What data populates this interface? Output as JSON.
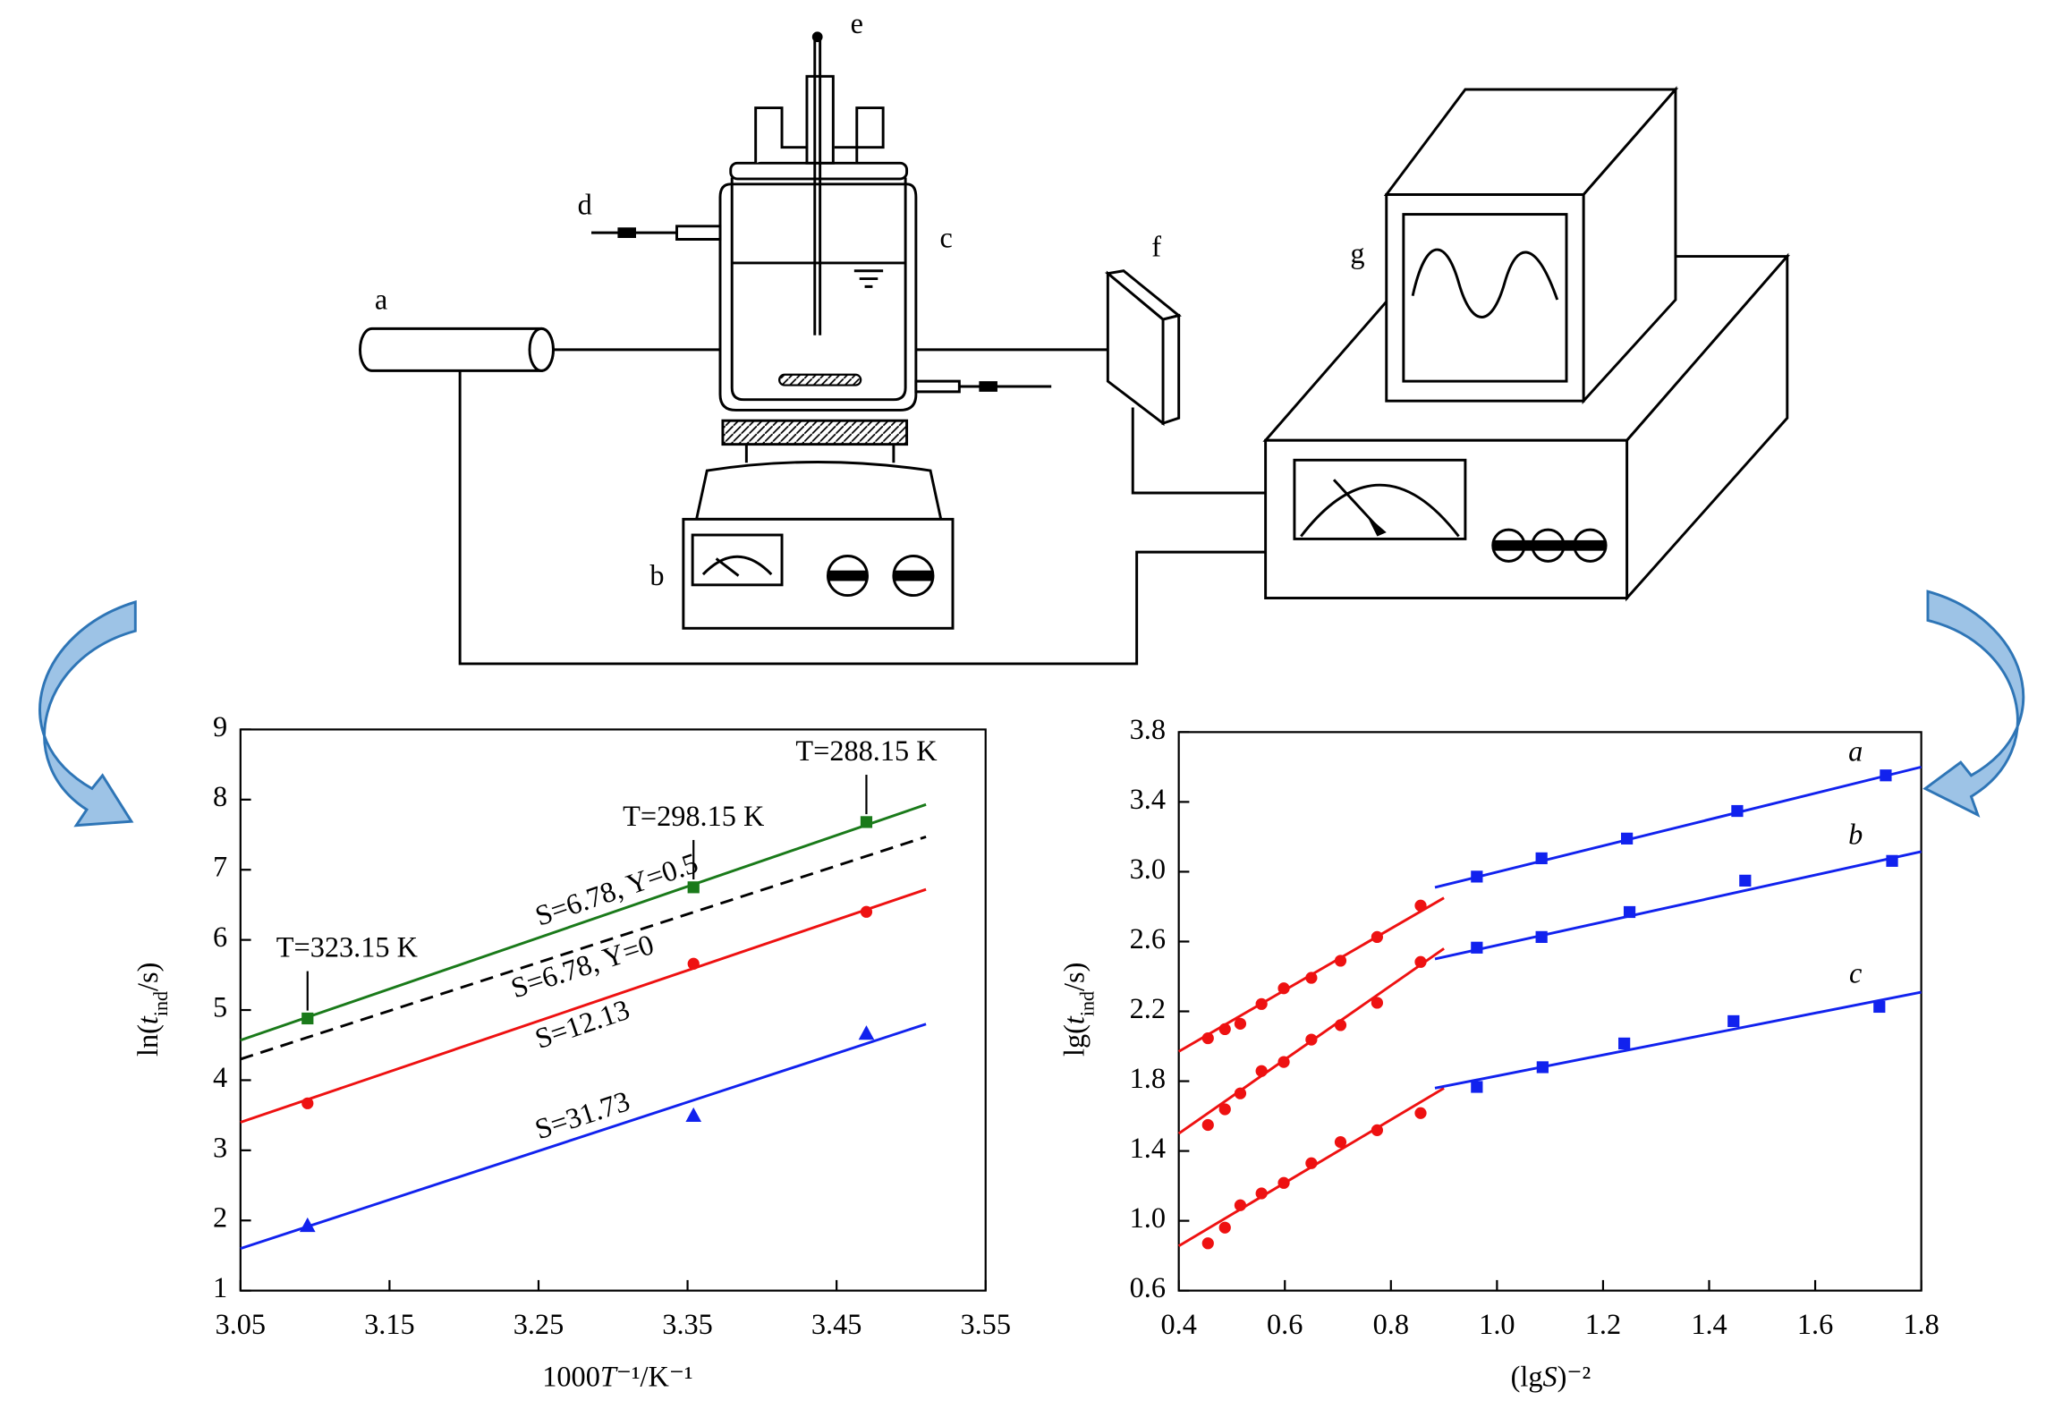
{
  "diagram": {
    "labels": [
      "a",
      "b",
      "c",
      "d",
      "e",
      "f",
      "g"
    ]
  },
  "chart_data": [
    {
      "type": "scatter",
      "xlabel": [
        "1000",
        "T",
        "⁻¹/K⁻¹"
      ],
      "ylabel": [
        "ln(",
        "t",
        "ind",
        "/s)"
      ],
      "xlim": [
        3.05,
        3.55
      ],
      "xticks": [
        3.05,
        3.15,
        3.25,
        3.35,
        3.45,
        3.55
      ],
      "ylim": [
        1,
        9
      ],
      "yticks": [
        1,
        2,
        3,
        4,
        5,
        6,
        7,
        8,
        9
      ],
      "series": [
        {
          "name": "S=6.78, Y=0.5",
          "segments": [
            {
              "color": "#1a7a1a",
              "marker": "square",
              "x": [
                3.095,
                3.354,
                3.47
              ],
              "values": [
                4.88,
                6.75,
                7.68
              ],
              "point_labels": [
                "T=323.15 K",
                "T=298.15 K",
                "T=288.15 K"
              ],
              "fit": {
                "x": [
                  3.05,
                  3.51
                ],
                "values": [
                  4.57,
                  7.93
                ]
              }
            }
          ]
        },
        {
          "name": "S=6.78, Y=0",
          "segments": [
            {
              "color": "#000000",
              "dash": true,
              "fit": {
                "x": [
                  3.05,
                  3.51
                ],
                "values": [
                  4.3,
                  7.47
                ]
              }
            }
          ]
        },
        {
          "name": "S=12.13",
          "segments": [
            {
              "color": "#ee1111",
              "marker": "circle",
              "x": [
                3.095,
                3.354,
                3.47
              ],
              "values": [
                3.67,
                5.66,
                6.4
              ],
              "fit": {
                "x": [
                  3.05,
                  3.51
                ],
                "values": [
                  3.4,
                  6.72
                ]
              }
            }
          ]
        },
        {
          "name": "S=31.73",
          "segments": [
            {
              "color": "#1122ee",
              "marker": "triangle",
              "x": [
                3.095,
                3.354,
                3.47
              ],
              "values": [
                1.93,
                3.5,
                4.67
              ],
              "fit": {
                "x": [
                  3.05,
                  3.51
                ],
                "values": [
                  1.6,
                  4.8
                ]
              }
            }
          ]
        }
      ]
    },
    {
      "type": "scatter",
      "xlabel": [
        "(lg",
        "S",
        ")⁻²"
      ],
      "ylabel": [
        "lg(",
        "t",
        "ind",
        "/s)"
      ],
      "xlim": [
        0.4,
        1.8
      ],
      "xticks": [
        0.4,
        0.6,
        0.8,
        {
          "value": 1,
          "label": "1.0"
        },
        1.2,
        1.4,
        1.6,
        1.8
      ],
      "ylim": [
        0.6,
        3.8
      ],
      "yticks": [
        0.6,
        {
          "value": 1,
          "label": "1.0"
        },
        1.4,
        1.8,
        2.2,
        2.6,
        {
          "value": 3,
          "label": "3.0"
        },
        3.4,
        3.8
      ],
      "series": [
        {
          "name": "a",
          "segments": [
            {
              "color": "#ee1111",
              "marker": "circle",
              "x": [
                0.455,
                0.487,
                0.516,
                0.556,
                0.598,
                0.65,
                0.705,
                0.774,
                0.856
              ],
              "values": [
                2.046,
                2.098,
                2.129,
                2.242,
                2.332,
                2.392,
                2.49,
                2.626,
                2.806
              ],
              "fit": {
                "x": [
                  0.4,
                  0.9
                ],
                "values": [
                  1.97,
                  2.85
                ]
              }
            },
            {
              "color": "#1122ee",
              "marker": "square",
              "x": [
                0.962,
                1.084,
                1.245,
                1.453,
                1.733
              ],
              "values": [
                2.972,
                3.077,
                3.19,
                3.348,
                3.552
              ],
              "fit": {
                "x": [
                  0.883,
                  1.8
                ],
                "values": [
                  2.91,
                  3.6
                ]
              }
            }
          ]
        },
        {
          "name": "b",
          "segments": [
            {
              "color": "#ee1111",
              "marker": "circle",
              "x": [
                0.455,
                0.487,
                0.516,
                0.556,
                0.598,
                0.65,
                0.705,
                0.774,
                0.856
              ],
              "values": [
                1.549,
                1.639,
                1.73,
                1.858,
                1.91,
                2.038,
                2.121,
                2.249,
                2.483
              ],
              "fit": {
                "x": [
                  0.4,
                  0.9
                ],
                "values": [
                  1.5,
                  2.56
                ]
              }
            },
            {
              "color": "#1122ee",
              "marker": "square",
              "x": [
                0.962,
                1.084,
                1.25,
                1.468,
                1.745
              ],
              "values": [
                2.565,
                2.626,
                2.769,
                2.949,
                3.062
              ],
              "fit": {
                "x": [
                  0.883,
                  1.8
                ],
                "values": [
                  2.5,
                  3.115
                ]
              }
            }
          ]
        },
        {
          "name": "c",
          "segments": [
            {
              "color": "#ee1111",
              "marker": "circle",
              "x": [
                0.455,
                0.487,
                0.516,
                0.556,
                0.598,
                0.65,
                0.705,
                0.774,
                0.856
              ],
              "values": [
                0.871,
                0.961,
                1.089,
                1.157,
                1.217,
                1.33,
                1.451,
                1.519,
                1.617
              ],
              "fit": {
                "x": [
                  0.4,
                  0.9
                ],
                "values": [
                  0.856,
                  1.76
                ]
              }
            },
            {
              "color": "#1122ee",
              "marker": "square",
              "x": [
                0.962,
                1.086,
                1.24,
                1.446,
                1.721
              ],
              "values": [
                1.767,
                1.88,
                2.016,
                2.144,
                2.226
              ],
              "fit": {
                "x": [
                  0.883,
                  1.8
                ],
                "values": [
                  1.76,
                  2.31
                ]
              }
            }
          ]
        }
      ]
    }
  ]
}
